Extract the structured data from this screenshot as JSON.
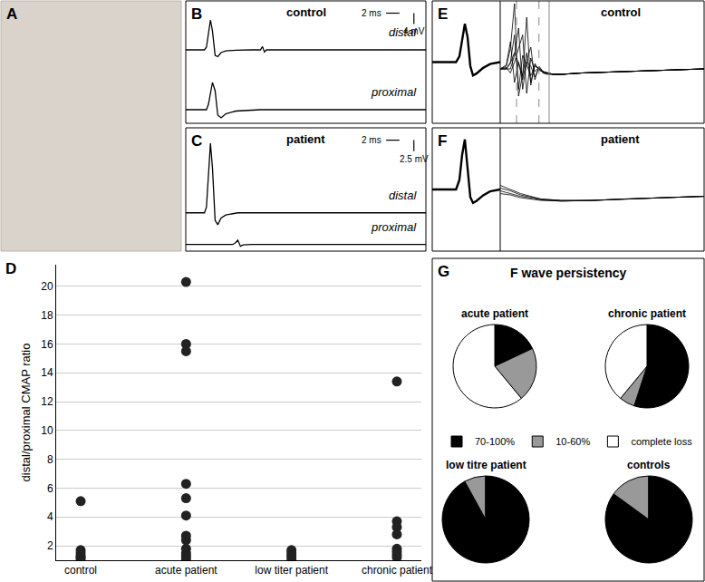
{
  "chart_data": [
    {
      "panel": "A",
      "type": "photo"
    },
    {
      "panel": "B",
      "type": "line",
      "title": "control",
      "tick_labels": false,
      "x": [
        0,
        2.8,
        3.1,
        3.4,
        3.7,
        4.0,
        4.4,
        4.8,
        5.3,
        6,
        7.5,
        10,
        11.2,
        11.5,
        11.8,
        12.1,
        13,
        20,
        36
      ],
      "xlim": [
        0,
        36
      ],
      "ylim": [
        -24,
        21
      ],
      "series": [
        {
          "name": "distal",
          "color": "#000000",
          "values": [
            3,
            3,
            4,
            9,
            14,
            10,
            1,
            0.5,
            2,
            2.6,
            2.9,
            3,
            3,
            4.2,
            2.2,
            3,
            3,
            3,
            3
          ]
        },
        {
          "name": "proximal",
          "color": "#000000",
          "values": [
            -19,
            -19,
            -19,
            -17,
            -13,
            -9,
            -12,
            -21,
            -22,
            -20.5,
            -19.5,
            -19,
            -19,
            -19,
            -19,
            -19,
            -19,
            -19,
            -19
          ]
        }
      ],
      "scale_bar": {
        "x": 2,
        "x_label": "2 ms",
        "y": 4,
        "y_label": "4 mV"
      }
    },
    {
      "panel": "C",
      "type": "line",
      "title": "patient",
      "tick_labels": false,
      "x": [
        0,
        2.8,
        3.1,
        3.4,
        3.7,
        4.0,
        4.4,
        4.8,
        5.3,
        6,
        7.0,
        7.4,
        7.8,
        8.2,
        8.6,
        10,
        20,
        36
      ],
      "xlim": [
        0,
        36
      ],
      "ylim": [
        -15,
        13
      ],
      "series": [
        {
          "name": "distal",
          "color": "#000000",
          "values": [
            -6.3,
            -6.3,
            -5,
            2,
            9.5,
            4,
            -8,
            -9,
            -7.5,
            -6.8,
            -6.5,
            -6.4,
            -6.3,
            -6.3,
            -6.3,
            -6.3,
            -6.3,
            -6.3
          ]
        },
        {
          "name": "proximal",
          "color": "#000000",
          "values": [
            -13.5,
            -13.5,
            -13.5,
            -13.5,
            -13.5,
            -13.5,
            -13.5,
            -13.5,
            -13.5,
            -13.5,
            -13.5,
            -13.2,
            -12.5,
            -13.9,
            -13.6,
            -13.5,
            -13.5,
            -13.5
          ]
        }
      ],
      "scale_bar": {
        "x": 2,
        "x_label": "2 ms",
        "y": 2.5,
        "y_label": "2.5 mV"
      }
    },
    {
      "panel": "E",
      "type": "line",
      "title": "control",
      "tick_labels": false,
      "plots": [
        {
          "x": [
            0,
            2,
            3,
            3.5,
            4,
            4.4,
            4.8,
            5.2,
            5.6,
            6.0,
            6.5,
            7.5,
            8.5,
            10
          ],
          "xlim": [
            0,
            10
          ],
          "ylim": [
            -3.2,
            3.2
          ],
          "series": [
            {
              "color": "#000000",
              "values": [
                0,
                0,
                0,
                0,
                0.3,
                1.2,
                2.0,
                1.3,
                -0.2,
                -0.7,
                -0.6,
                -0.3,
                -0.1,
                0
              ]
            }
          ]
        },
        {
          "x": [
            0,
            3,
            5,
            7,
            9,
            11,
            13,
            15,
            17,
            19,
            21,
            23,
            26,
            30,
            40,
            60,
            80,
            100
          ],
          "xlim": [
            0,
            100
          ],
          "ylim": [
            -4,
            5
          ],
          "cursors": [
            {
              "x": 8,
              "line_style": "dash"
            },
            {
              "x": 19,
              "line_style": "dash"
            },
            {
              "x": 24,
              "line_style": "solid"
            }
          ],
          "series": [
            {
              "color": "#000000",
              "values": [
                0,
                0,
                0.5,
                2.5,
                -1.5,
                1,
                0.3,
                -0.5,
                0.2,
                0,
                -0.2,
                -0.3,
                -0.4,
                -0.4,
                -0.3,
                -0.2,
                -0.1,
                0
              ]
            },
            {
              "color": "#000000",
              "values": [
                0,
                0.2,
                1.5,
                4.8,
                -2,
                -0.5,
                1.2,
                -1,
                0.3,
                0,
                -0.3,
                -0.4,
                -0.4,
                -0.4,
                -0.3,
                -0.2,
                -0.1,
                0
              ]
            },
            {
              "color": "#000000",
              "values": [
                0,
                0,
                0,
                1,
                3,
                -1.5,
                0.5,
                0.2,
                -0.6,
                0.1,
                -0.2,
                -0.3,
                -0.4,
                -0.4,
                -0.3,
                -0.2,
                -0.1,
                0
              ]
            },
            {
              "color": "#000000",
              "values": [
                0,
                0.1,
                -0.3,
                0.5,
                1.5,
                2.5,
                -1.8,
                0.8,
                -0.2,
                0.1,
                -0.3,
                -0.35,
                -0.4,
                -0.4,
                -0.3,
                -0.2,
                -0.1,
                0
              ]
            },
            {
              "color": "#000000",
              "values": [
                0,
                0.3,
                2,
                -1,
                0.5,
                -0.5,
                3.8,
                -1.2,
                0.4,
                -0.1,
                -0.2,
                -0.3,
                -0.4,
                -0.4,
                -0.3,
                -0.2,
                -0.1,
                0
              ]
            },
            {
              "color": "#000000",
              "values": [
                0,
                0,
                0.4,
                1.2,
                0.4,
                -0.8,
                0.6,
                1.6,
                -0.8,
                0.2,
                -0.2,
                -0.3,
                -0.4,
                -0.4,
                -0.3,
                -0.2,
                -0.1,
                0
              ]
            }
          ]
        }
      ]
    },
    {
      "panel": "F",
      "type": "line",
      "title": "patient",
      "tick_labels": false,
      "plots": [
        {
          "x": [
            0,
            2,
            3,
            3.5,
            4,
            4.4,
            4.8,
            5.2,
            5.6,
            6.0,
            6.5,
            7.5,
            8.5,
            10
          ],
          "xlim": [
            0,
            10
          ],
          "ylim": [
            -3.2,
            3.2
          ],
          "series": [
            {
              "color": "#000000",
              "values": [
                0,
                0,
                0,
                0,
                0.5,
                1.8,
                2.6,
                1.0,
                -0.4,
                -0.7,
                -0.6,
                -0.3,
                -0.1,
                0
              ]
            }
          ]
        },
        {
          "x": [
            0,
            5,
            10,
            20,
            30,
            45,
            60,
            80,
            100
          ],
          "xlim": [
            0,
            100
          ],
          "ylim": [
            -4,
            5
          ],
          "series": [
            {
              "color": "#000000",
              "values": [
                0.8,
                0.5,
                0.2,
                -0.2,
                -0.3,
                -0.3,
                -0.2,
                -0.1,
                0
              ]
            },
            {
              "color": "#000000",
              "values": [
                0.6,
                0.4,
                0.1,
                -0.2,
                -0.3,
                -0.3,
                -0.2,
                -0.1,
                0
              ]
            },
            {
              "color": "#000000",
              "values": [
                0.4,
                0.2,
                0,
                -0.25,
                -0.35,
                -0.3,
                -0.2,
                -0.1,
                0
              ]
            },
            {
              "color": "#000000",
              "values": [
                0.2,
                0.1,
                -0.1,
                -0.3,
                -0.35,
                -0.3,
                -0.2,
                -0.1,
                0
              ]
            }
          ]
        }
      ]
    },
    {
      "panel": "D",
      "type": "scatter",
      "categories": [
        "control",
        "acute patient",
        "low titer patient",
        "chronic patient"
      ],
      "values": [
        [
          5.1,
          1.7,
          1.5,
          1.3,
          1.2,
          1.1
        ],
        [
          20.3,
          16.0,
          15.5,
          6.3,
          5.3,
          4.1,
          2.7,
          2.4,
          1.8,
          1.5,
          1.3,
          1.1
        ],
        [
          1.7,
          1.5,
          1.3,
          1.1
        ],
        [
          13.4,
          3.7,
          3.3,
          2.8,
          1.8,
          1.6,
          1.4,
          1.2
        ]
      ],
      "color": "#222222",
      "marker": "circle",
      "ylabel": "distal/proximal CMAP ratio",
      "ylim": [
        1,
        21.5
      ],
      "yticks": [
        2,
        4,
        6,
        8,
        10,
        12,
        14,
        16,
        18,
        20
      ],
      "grid": true
    },
    {
      "panel": "G",
      "type": "pie",
      "title": "F wave persistency",
      "labels": [
        "70-100%",
        "10-60%",
        "complete loss"
      ],
      "colors": [
        "#000000",
        "#999999",
        "#ffffff"
      ],
      "legend": "center",
      "pies": [
        {
          "title": "acute patient",
          "values": [
            18,
            21,
            61
          ]
        },
        {
          "title": "chronic patient",
          "values": [
            55,
            6,
            39
          ]
        },
        {
          "title": "low titre patient",
          "values": [
            92,
            8,
            0
          ]
        },
        {
          "title": "controls",
          "values": [
            85,
            15,
            0
          ]
        }
      ]
    }
  ]
}
